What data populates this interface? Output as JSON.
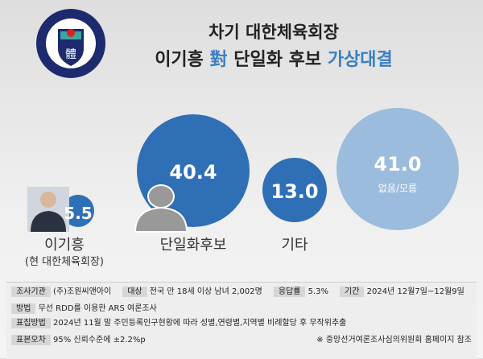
{
  "header": {
    "line1": "차기 대한체육회장",
    "line2_a": "이기흥",
    "line2_vs": "對",
    "line2_b": "단일화 후보",
    "line2_c": "가상대결"
  },
  "logo": {
    "text_top": "대한체육회",
    "text_bottom": "KOREA SPORTS COUNCIL",
    "emblem": "體"
  },
  "chart_data": {
    "type": "bubble",
    "categories": [
      "이기흥",
      "단일화후보",
      "기타",
      "없음/모름"
    ],
    "values": [
      5.5,
      40.4,
      13.0,
      41.0
    ],
    "sublabels": [
      "(현 대한체육회장)",
      "",
      "",
      "없음/모름"
    ],
    "colors": [
      "#2f6fb5",
      "#2f6fb5",
      "#2f6fb5",
      "#9bbcdc"
    ],
    "value_labels": [
      "5.5",
      "40.4",
      "13.0",
      "41.0"
    ]
  },
  "footer": {
    "agency_k": "조사기관",
    "agency_v": "(주)조원씨앤아이",
    "target_k": "대상",
    "target_v": "전국 만 18세 이상 남녀 2,002명",
    "resp_k": "응답률",
    "resp_v": "5.3%",
    "period_k": "기간",
    "period_v": "2024년 12월7일~12월9일",
    "method_k": "방법",
    "method_v": "무선 RDD를 이용한 ARS 여론조사",
    "sampling_k": "표집방법",
    "sampling_v": "2024년 11월 말 주민등록인구현황에 따라 성별,연령별,지역별 비례할당 후 무작위추출",
    "error_k": "표본오차",
    "error_v": "95% 신뢰수준에 ±2.2%p",
    "note": "※ 중앙선거여론조사심의위원회 홈페이지 참조"
  }
}
